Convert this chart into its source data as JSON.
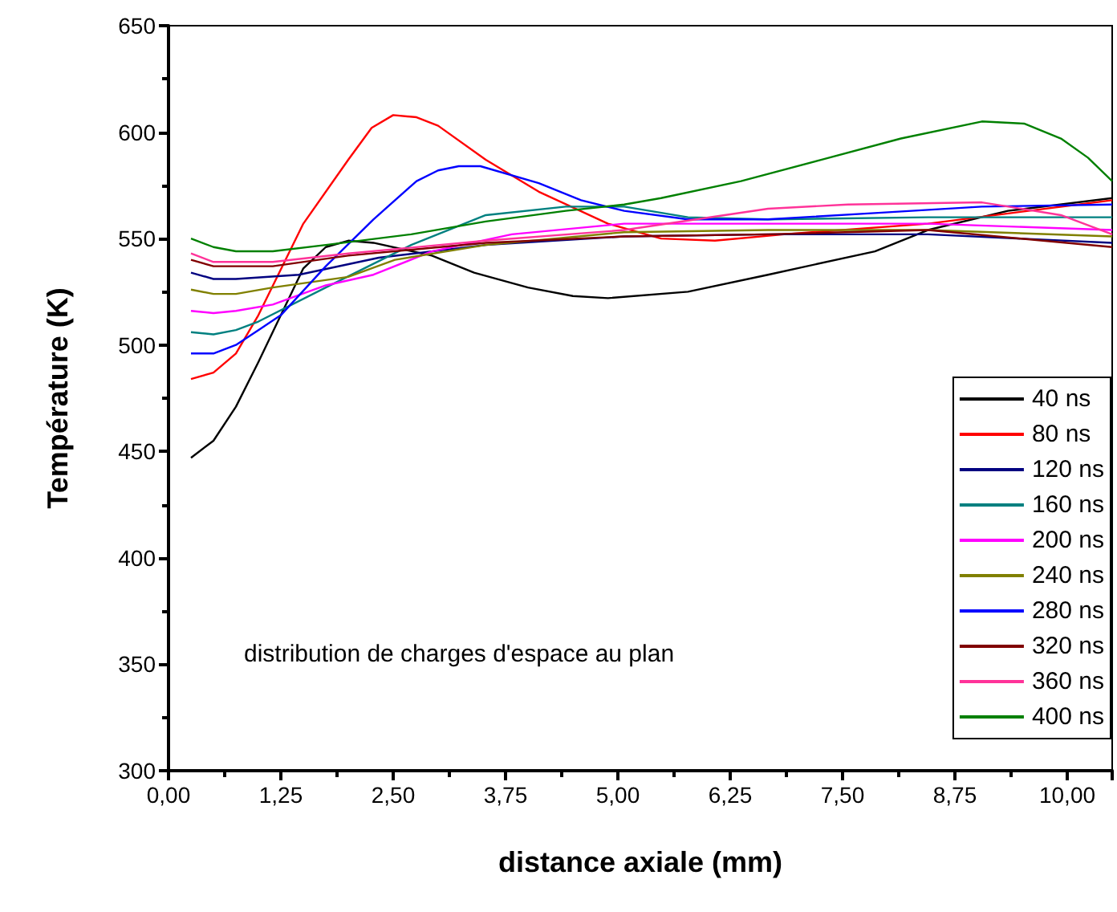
{
  "chart_data": {
    "type": "line",
    "xlabel": "distance axiale (mm)",
    "ylabel": "Température (K)",
    "annotations": [
      "distribution de charges d'espace au plan"
    ],
    "xlim": [
      0,
      10.5
    ],
    "ylim": [
      300,
      650
    ],
    "xticks": [
      {
        "value": 0,
        "label": "0,00"
      },
      {
        "value": 1.25,
        "label": "1,25"
      },
      {
        "value": 2.5,
        "label": "2,50"
      },
      {
        "value": 3.75,
        "label": "3,75"
      },
      {
        "value": 5,
        "label": "5,00"
      },
      {
        "value": 6.25,
        "label": "6,25"
      },
      {
        "value": 7.5,
        "label": "7,50"
      },
      {
        "value": 8.75,
        "label": "8,75"
      },
      {
        "value": 10,
        "label": "10,00"
      }
    ],
    "yticks": [
      300,
      350,
      400,
      450,
      500,
      550,
      600,
      650
    ],
    "grid": false,
    "legend": "bottom right",
    "marker": "none",
    "line_style": "solid",
    "series": [
      {
        "name": "40 ns",
        "color": "#000000",
        "x": [
          0.25,
          0.5,
          0.75,
          1.0,
          1.25,
          1.5,
          1.75,
          2.0,
          2.28,
          2.93,
          3.4,
          4.0,
          4.5,
          4.89,
          5.78,
          6.67,
          7.86,
          8.45,
          9.34,
          10.5
        ],
        "values": [
          447,
          455,
          471,
          492,
          514,
          536,
          546,
          549,
          548,
          542,
          534,
          527,
          523,
          522,
          525,
          533,
          544,
          554,
          563,
          569
        ]
      },
      {
        "name": "80 ns",
        "color": "#ff0000",
        "x": [
          0.25,
          0.5,
          0.75,
          1.0,
          1.5,
          2.0,
          2.26,
          2.5,
          2.76,
          3.0,
          3.53,
          4.12,
          4.89,
          5.48,
          6.08,
          6.85,
          8.45,
          10.5
        ],
        "values": [
          484,
          487,
          496,
          514,
          557,
          587,
          602,
          608,
          607,
          603,
          587,
          572,
          557,
          550,
          549,
          552,
          557,
          568
        ]
      },
      {
        "name": "120 ns",
        "color": "#000080",
        "x": [
          0.25,
          0.5,
          0.75,
          1.45,
          2.34,
          3.53,
          5.07,
          6.67,
          8.45,
          10.5
        ],
        "values": [
          534,
          531,
          531,
          533,
          541,
          547,
          551,
          552,
          552,
          548
        ]
      },
      {
        "name": "160 ns",
        "color": "#008080",
        "x": [
          0.25,
          0.5,
          0.75,
          1.0,
          1.75,
          2.7,
          3.53,
          4.42,
          5.07,
          5.78,
          6.67,
          8.45,
          10.5
        ],
        "values": [
          506,
          505,
          507,
          511,
          527,
          547,
          561,
          565,
          565,
          560,
          559,
          560,
          560
        ]
      },
      {
        "name": "200 ns",
        "color": "#ff00ff",
        "x": [
          0.25,
          0.5,
          0.75,
          1.16,
          1.75,
          2.28,
          2.93,
          3.82,
          5.07,
          6.67,
          8.45,
          10.5
        ],
        "values": [
          516,
          515,
          516,
          519,
          528,
          533,
          544,
          552,
          557,
          557,
          557,
          554
        ]
      },
      {
        "name": "240 ns",
        "color": "#808000",
        "x": [
          0.25,
          0.5,
          0.75,
          1.16,
          2.0,
          2.52,
          3.53,
          5.07,
          6.67,
          8.45,
          10.5
        ],
        "values": [
          526,
          524,
          524,
          527,
          532,
          540,
          547,
          553,
          554,
          554,
          551
        ]
      },
      {
        "name": "280 ns",
        "color": "#0000ff",
        "x": [
          0.25,
          0.5,
          0.75,
          1.0,
          1.25,
          1.75,
          2.28,
          2.76,
          3.0,
          3.23,
          3.47,
          4.12,
          4.59,
          5.07,
          5.78,
          6.67,
          7.86,
          9.05,
          10.5
        ],
        "values": [
          496,
          496,
          500,
          507,
          514,
          537,
          559,
          577,
          582,
          584,
          584,
          576,
          568,
          563,
          559,
          559,
          562,
          565,
          566
        ]
      },
      {
        "name": "320 ns",
        "color": "#800000",
        "x": [
          0.25,
          0.5,
          1.16,
          2.0,
          3.53,
          5.07,
          6.67,
          8.45,
          10.5
        ],
        "values": [
          540,
          537,
          537,
          542,
          548,
          551,
          552,
          554,
          546
        ]
      },
      {
        "name": "360 ns",
        "color": "#ff3399",
        "x": [
          0.25,
          0.5,
          1.16,
          2.0,
          3.53,
          5.07,
          6.67,
          7.56,
          9.05,
          9.93,
          10.5
        ],
        "values": [
          543,
          539,
          539,
          543,
          549,
          554,
          564,
          566,
          567,
          561,
          552
        ]
      },
      {
        "name": "400 ns",
        "color": "#008000",
        "x": [
          0.25,
          0.5,
          0.75,
          1.16,
          1.75,
          2.7,
          3.53,
          4.42,
          5.07,
          5.48,
          6.37,
          7.26,
          8.15,
          9.05,
          9.52,
          9.93,
          10.23,
          10.5
        ],
        "values": [
          550,
          546,
          544,
          544,
          547,
          552,
          558,
          563,
          566,
          569,
          577,
          587,
          597,
          605,
          604,
          597,
          588,
          577
        ]
      }
    ]
  }
}
